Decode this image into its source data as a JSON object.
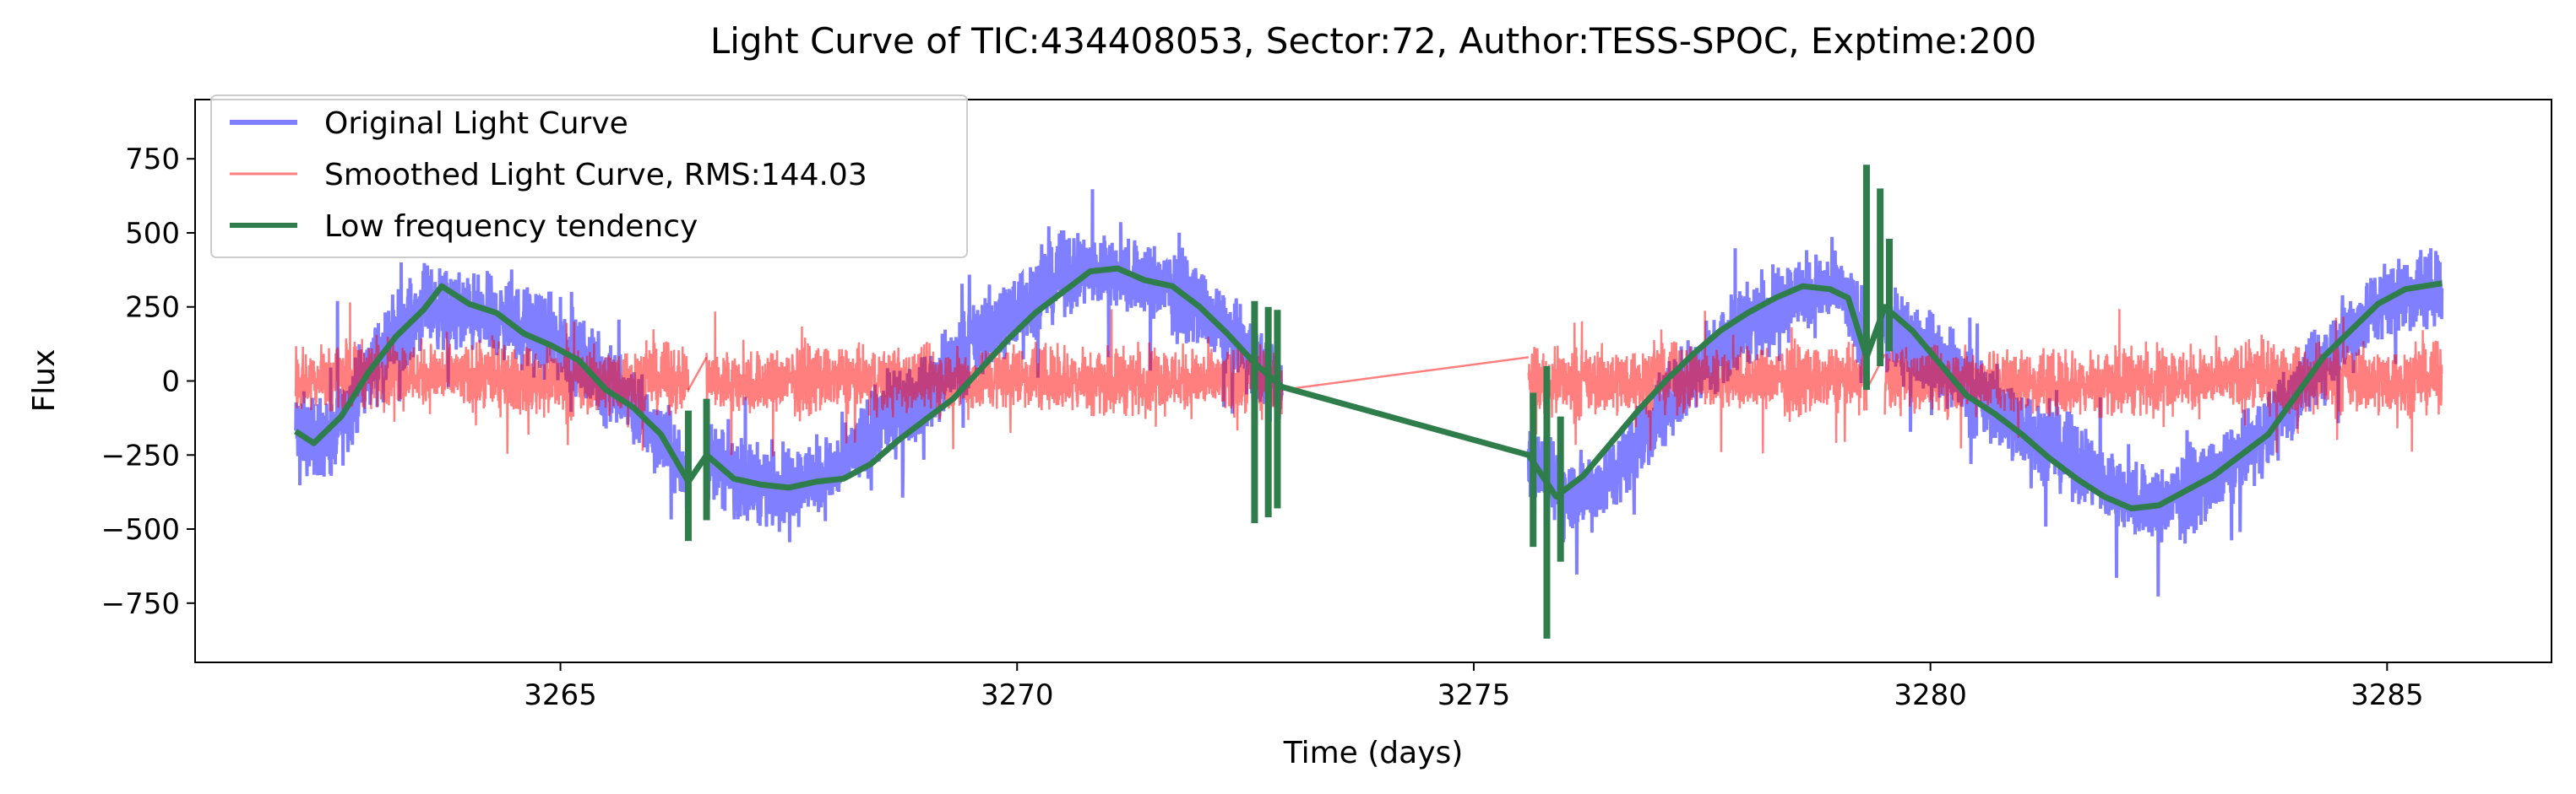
{
  "chart_data": {
    "type": "line",
    "title": "Light Curve of TIC:434408053, Sector:72, Author:TESS-SPOC, Exptime:200",
    "xlabel": "Time (days)",
    "ylabel": "Flux",
    "xlim": [
      3261.0,
      3286.8
    ],
    "ylim": [
      -950,
      950
    ],
    "x_ticks": [
      3265,
      3270,
      3275,
      3280,
      3285
    ],
    "x_tick_labels": [
      "3265",
      "3270",
      "3275",
      "3280",
      "3285"
    ],
    "y_ticks": [
      -750,
      -500,
      -250,
      0,
      250,
      500,
      750
    ],
    "y_tick_labels": [
      "−750",
      "−500",
      "−250",
      "0",
      "250",
      "500",
      "750"
    ],
    "grid": false,
    "legend_position": "upper-left",
    "segments": [
      [
        3262.1,
        3266.4
      ],
      [
        3266.6,
        3272.9
      ],
      [
        3275.6,
        3279.3
      ],
      [
        3279.5,
        3285.6
      ]
    ],
    "series": [
      {
        "name": "Original Light Curve",
        "color": "#0000ff",
        "opacity": 0.5,
        "x": [
          3262.1,
          3262.5,
          3263.0,
          3263.5,
          3264.0,
          3264.5,
          3265.0,
          3265.5,
          3266.0,
          3266.4,
          3266.6,
          3267.0,
          3267.5,
          3268.0,
          3268.5,
          3269.0,
          3269.5,
          3270.0,
          3270.5,
          3271.0,
          3271.5,
          3272.0,
          3272.5,
          3272.9,
          3275.6,
          3276.0,
          3276.5,
          3277.0,
          3277.5,
          3278.0,
          3278.5,
          3279.0,
          3279.3,
          3279.5,
          3280.0,
          3280.5,
          3281.0,
          3281.5,
          3282.0,
          3282.5,
          3283.0,
          3283.5,
          3284.0,
          3284.5,
          3285.0,
          3285.6
        ],
        "y": [
          -170,
          -200,
          80,
          250,
          230,
          200,
          130,
          0,
          -150,
          -330,
          -250,
          -340,
          -350,
          -310,
          -150,
          -50,
          120,
          250,
          360,
          370,
          330,
          250,
          100,
          -30,
          -250,
          -390,
          -330,
          -120,
          60,
          200,
          290,
          310,
          150,
          150,
          100,
          -50,
          -150,
          -250,
          -370,
          -430,
          -350,
          -230,
          -50,
          150,
          280,
          320
        ],
        "spread": 190
      },
      {
        "name": "Smoothed Light Curve, RMS:144.03",
        "color": "#ff0000",
        "opacity": 0.5,
        "x": [
          3262.1,
          3262.5,
          3263.0,
          3263.5,
          3264.0,
          3264.5,
          3265.0,
          3265.5,
          3266.0,
          3266.4,
          3266.6,
          3267.0,
          3267.5,
          3268.0,
          3268.5,
          3269.0,
          3269.5,
          3270.0,
          3270.5,
          3271.0,
          3271.5,
          3272.0,
          3272.5,
          3272.9,
          3275.6,
          3276.0,
          3276.5,
          3277.0,
          3277.5,
          3278.0,
          3278.5,
          3279.0,
          3279.3,
          3279.5,
          3280.0,
          3280.5,
          3281.0,
          3281.5,
          3282.0,
          3282.5,
          3283.0,
          3283.5,
          3284.0,
          3284.5,
          3285.0,
          3285.6
        ],
        "y": [
          0,
          20,
          30,
          20,
          10,
          0,
          -10,
          0,
          10,
          0,
          0,
          -10,
          0,
          10,
          0,
          10,
          0,
          20,
          10,
          0,
          10,
          0,
          -10,
          0,
          0,
          -10,
          0,
          10,
          0,
          10,
          0,
          10,
          0,
          10,
          0,
          10,
          0,
          -10,
          0,
          10,
          0,
          10,
          0,
          10,
          0,
          10
        ],
        "spread": 160
      },
      {
        "name": "Low frequency tendency",
        "color": "#2e7d4a",
        "opacity": 1.0,
        "x": [
          3262.1,
          3262.3,
          3262.6,
          3262.9,
          3263.2,
          3263.5,
          3263.7,
          3264.0,
          3264.3,
          3264.6,
          3264.9,
          3265.2,
          3265.5,
          3265.8,
          3266.1,
          3266.4,
          3266.6,
          3266.9,
          3267.2,
          3267.5,
          3267.8,
          3268.1,
          3268.4,
          3268.7,
          3269.0,
          3269.3,
          3269.6,
          3269.9,
          3270.2,
          3270.5,
          3270.8,
          3271.1,
          3271.4,
          3271.7,
          3272.0,
          3272.3,
          3272.6,
          3272.9,
          3275.6,
          3275.9,
          3276.2,
          3276.5,
          3276.8,
          3277.1,
          3277.4,
          3277.7,
          3278.0,
          3278.3,
          3278.6,
          3278.9,
          3279.1,
          3279.3,
          3279.5,
          3279.8,
          3280.1,
          3280.4,
          3280.7,
          3281.0,
          3281.3,
          3281.6,
          3281.9,
          3282.2,
          3282.5,
          3282.8,
          3283.1,
          3283.4,
          3283.7,
          3284.0,
          3284.3,
          3284.6,
          3284.9,
          3285.2,
          3285.6
        ],
        "y": [
          -170,
          -210,
          -120,
          30,
          150,
          240,
          320,
          260,
          230,
          160,
          120,
          70,
          -30,
          -90,
          -180,
          -340,
          -250,
          -330,
          -350,
          -360,
          -340,
          -330,
          -280,
          -200,
          -130,
          -60,
          40,
          140,
          230,
          300,
          370,
          380,
          340,
          320,
          250,
          160,
          60,
          -20,
          -250,
          -390,
          -320,
          -210,
          -100,
          0,
          90,
          170,
          230,
          280,
          320,
          310,
          280,
          80,
          250,
          170,
          60,
          -50,
          -110,
          -180,
          -260,
          -330,
          -390,
          -430,
          -420,
          -370,
          -320,
          -250,
          -180,
          -50,
          80,
          170,
          260,
          310,
          330
        ],
        "glitches": [
          [
            3266.4,
            -540,
            -100
          ],
          [
            3266.6,
            -470,
            -60
          ],
          [
            3272.6,
            -480,
            270
          ],
          [
            3272.75,
            -460,
            250
          ],
          [
            3272.85,
            -430,
            240
          ],
          [
            3275.65,
            -560,
            -40
          ],
          [
            3275.8,
            -870,
            50
          ],
          [
            3275.95,
            -610,
            -120
          ],
          [
            3279.3,
            -30,
            730
          ],
          [
            3279.45,
            50,
            650
          ],
          [
            3279.55,
            100,
            480
          ]
        ]
      }
    ]
  }
}
